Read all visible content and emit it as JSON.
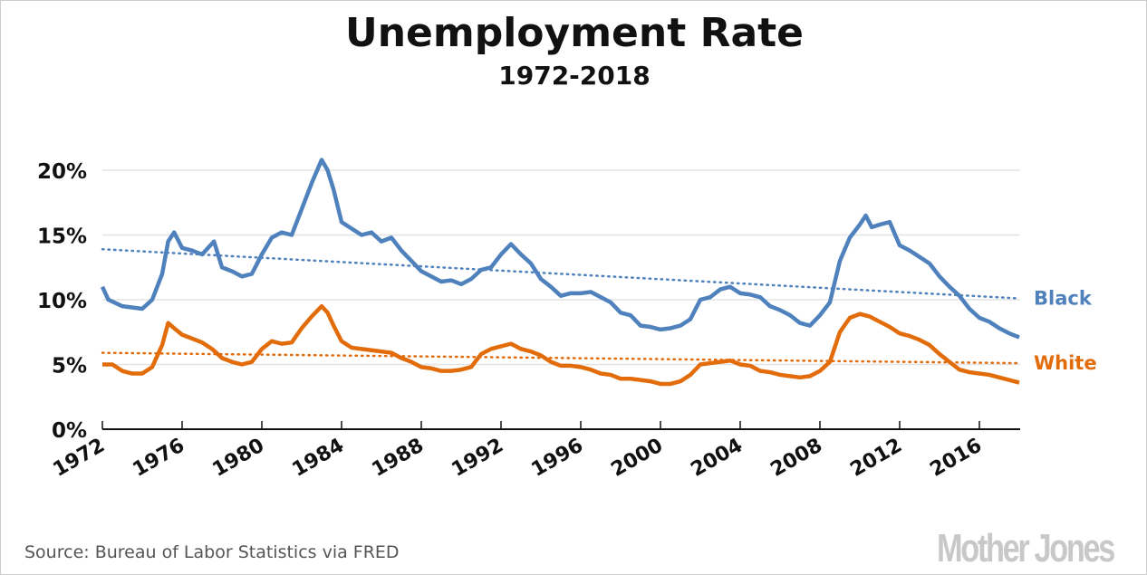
{
  "chart_data": {
    "type": "line",
    "title": "Unemployment Rate",
    "subtitle": "1972-2018",
    "xlabel": "",
    "ylabel": "",
    "xlim": [
      1972,
      2018
    ],
    "ylim": [
      0,
      20
    ],
    "yticks": [
      0,
      5,
      10,
      15,
      20
    ],
    "ytick_labels": [
      "0%",
      "5%",
      "10%",
      "15%",
      "20%"
    ],
    "xticks": [
      1972,
      1976,
      1980,
      1984,
      1988,
      1992,
      1996,
      2000,
      2004,
      2008,
      2012,
      2016
    ],
    "xtick_labels": [
      "1972",
      "1976",
      "1980",
      "1984",
      "1988",
      "1992",
      "1996",
      "2000",
      "2004",
      "2008",
      "2012",
      "2016"
    ],
    "grid": true,
    "legend": "inline-right",
    "series": [
      {
        "name": "Black",
        "color": "#4f81bd",
        "points": [
          [
            1972,
            11
          ],
          [
            1972.3,
            10
          ],
          [
            1973,
            9.5
          ],
          [
            1974,
            9.3
          ],
          [
            1974.5,
            10
          ],
          [
            1975,
            12
          ],
          [
            1975.3,
            14.5
          ],
          [
            1975.6,
            15.2
          ],
          [
            1976,
            14
          ],
          [
            1976.5,
            13.8
          ],
          [
            1977,
            13.5
          ],
          [
            1977.6,
            14.5
          ],
          [
            1978,
            12.5
          ],
          [
            1978.5,
            12.2
          ],
          [
            1979,
            11.8
          ],
          [
            1979.5,
            12
          ],
          [
            1980,
            13.5
          ],
          [
            1980.5,
            14.8
          ],
          [
            1981,
            15.2
          ],
          [
            1981.5,
            15
          ],
          [
            1982,
            17
          ],
          [
            1982.5,
            19
          ],
          [
            1983,
            20.8
          ],
          [
            1983.3,
            20
          ],
          [
            1983.6,
            18.5
          ],
          [
            1984,
            16
          ],
          [
            1984.5,
            15.5
          ],
          [
            1985,
            15
          ],
          [
            1985.5,
            15.2
          ],
          [
            1986,
            14.5
          ],
          [
            1986.5,
            14.8
          ],
          [
            1987,
            13.8
          ],
          [
            1987.5,
            13
          ],
          [
            1988,
            12.2
          ],
          [
            1988.5,
            11.8
          ],
          [
            1989,
            11.4
          ],
          [
            1989.5,
            11.5
          ],
          [
            1990,
            11.2
          ],
          [
            1990.5,
            11.6
          ],
          [
            1991,
            12.3
          ],
          [
            1991.5,
            12.5
          ],
          [
            1992,
            13.5
          ],
          [
            1992.5,
            14.3
          ],
          [
            1993,
            13.5
          ],
          [
            1993.5,
            12.8
          ],
          [
            1994,
            11.6
          ],
          [
            1994.5,
            11
          ],
          [
            1995,
            10.3
          ],
          [
            1995.5,
            10.5
          ],
          [
            1996,
            10.5
          ],
          [
            1996.5,
            10.6
          ],
          [
            1997,
            10.2
          ],
          [
            1997.5,
            9.8
          ],
          [
            1998,
            9
          ],
          [
            1998.5,
            8.8
          ],
          [
            1999,
            8
          ],
          [
            1999.5,
            7.9
          ],
          [
            2000,
            7.7
          ],
          [
            2000.5,
            7.8
          ],
          [
            2001,
            8
          ],
          [
            2001.5,
            8.5
          ],
          [
            2002,
            10
          ],
          [
            2002.5,
            10.2
          ],
          [
            2003,
            10.8
          ],
          [
            2003.5,
            11
          ],
          [
            2004,
            10.5
          ],
          [
            2004.5,
            10.4
          ],
          [
            2005,
            10.2
          ],
          [
            2005.5,
            9.5
          ],
          [
            2006,
            9.2
          ],
          [
            2006.5,
            8.8
          ],
          [
            2007,
            8.2
          ],
          [
            2007.5,
            8
          ],
          [
            2008,
            8.8
          ],
          [
            2008.5,
            9.8
          ],
          [
            2009,
            13
          ],
          [
            2009.5,
            14.8
          ],
          [
            2010,
            15.8
          ],
          [
            2010.3,
            16.5
          ],
          [
            2010.6,
            15.6
          ],
          [
            2011,
            15.8
          ],
          [
            2011.5,
            16
          ],
          [
            2012,
            14.2
          ],
          [
            2012.5,
            13.8
          ],
          [
            2013,
            13.3
          ],
          [
            2013.5,
            12.8
          ],
          [
            2014,
            11.8
          ],
          [
            2014.5,
            11
          ],
          [
            2015,
            10.3
          ],
          [
            2015.5,
            9.3
          ],
          [
            2016,
            8.6
          ],
          [
            2016.5,
            8.3
          ],
          [
            2017,
            7.8
          ],
          [
            2017.5,
            7.4
          ],
          [
            2018,
            7.1
          ]
        ],
        "trend": [
          [
            1972,
            13.9
          ],
          [
            2018,
            10.1
          ]
        ]
      },
      {
        "name": "White",
        "color": "#e36c0a",
        "points": [
          [
            1972,
            5
          ],
          [
            1972.5,
            5
          ],
          [
            1973,
            4.5
          ],
          [
            1973.5,
            4.3
          ],
          [
            1974,
            4.3
          ],
          [
            1974.5,
            4.8
          ],
          [
            1975,
            6.5
          ],
          [
            1975.3,
            8.2
          ],
          [
            1975.6,
            7.8
          ],
          [
            1976,
            7.3
          ],
          [
            1976.5,
            7
          ],
          [
            1977,
            6.7
          ],
          [
            1977.5,
            6.2
          ],
          [
            1978,
            5.5
          ],
          [
            1978.5,
            5.2
          ],
          [
            1979,
            5
          ],
          [
            1979.5,
            5.2
          ],
          [
            1980,
            6.2
          ],
          [
            1980.5,
            6.8
          ],
          [
            1981,
            6.6
          ],
          [
            1981.5,
            6.7
          ],
          [
            1982,
            7.8
          ],
          [
            1982.5,
            8.7
          ],
          [
            1983,
            9.5
          ],
          [
            1983.3,
            9
          ],
          [
            1983.6,
            8
          ],
          [
            1984,
            6.8
          ],
          [
            1984.5,
            6.3
          ],
          [
            1985,
            6.2
          ],
          [
            1985.5,
            6.1
          ],
          [
            1986,
            6
          ],
          [
            1986.5,
            5.9
          ],
          [
            1987,
            5.5
          ],
          [
            1987.5,
            5.2
          ],
          [
            1988,
            4.8
          ],
          [
            1988.5,
            4.7
          ],
          [
            1989,
            4.5
          ],
          [
            1989.5,
            4.5
          ],
          [
            1990,
            4.6
          ],
          [
            1990.5,
            4.8
          ],
          [
            1991,
            5.8
          ],
          [
            1991.5,
            6.2
          ],
          [
            1992,
            6.4
          ],
          [
            1992.5,
            6.6
          ],
          [
            1993,
            6.2
          ],
          [
            1993.5,
            6
          ],
          [
            1994,
            5.7
          ],
          [
            1994.5,
            5.2
          ],
          [
            1995,
            4.9
          ],
          [
            1995.5,
            4.9
          ],
          [
            1996,
            4.8
          ],
          [
            1996.5,
            4.6
          ],
          [
            1997,
            4.3
          ],
          [
            1997.5,
            4.2
          ],
          [
            1998,
            3.9
          ],
          [
            1998.5,
            3.9
          ],
          [
            1999,
            3.8
          ],
          [
            1999.5,
            3.7
          ],
          [
            2000,
            3.5
          ],
          [
            2000.5,
            3.5
          ],
          [
            2001,
            3.7
          ],
          [
            2001.5,
            4.2
          ],
          [
            2002,
            5
          ],
          [
            2002.5,
            5.1
          ],
          [
            2003,
            5.2
          ],
          [
            2003.5,
            5.3
          ],
          [
            2004,
            5
          ],
          [
            2004.5,
            4.9
          ],
          [
            2005,
            4.5
          ],
          [
            2005.5,
            4.4
          ],
          [
            2006,
            4.2
          ],
          [
            2006.5,
            4.1
          ],
          [
            2007,
            4
          ],
          [
            2007.5,
            4.1
          ],
          [
            2008,
            4.5
          ],
          [
            2008.5,
            5.2
          ],
          [
            2009,
            7.5
          ],
          [
            2009.5,
            8.6
          ],
          [
            2010,
            8.9
          ],
          [
            2010.5,
            8.7
          ],
          [
            2011,
            8.3
          ],
          [
            2011.5,
            7.9
          ],
          [
            2012,
            7.4
          ],
          [
            2012.5,
            7.2
          ],
          [
            2013,
            6.9
          ],
          [
            2013.5,
            6.5
          ],
          [
            2014,
            5.8
          ],
          [
            2014.5,
            5.2
          ],
          [
            2015,
            4.6
          ],
          [
            2015.5,
            4.4
          ],
          [
            2016,
            4.3
          ],
          [
            2016.5,
            4.2
          ],
          [
            2017,
            4
          ],
          [
            2017.5,
            3.8
          ],
          [
            2018,
            3.6
          ]
        ],
        "trend": [
          [
            1972,
            5.9
          ],
          [
            2018,
            5.1
          ]
        ]
      }
    ],
    "source": "Source: Bureau of Labor Statistics via FRED",
    "logo": "Mother Jones"
  }
}
